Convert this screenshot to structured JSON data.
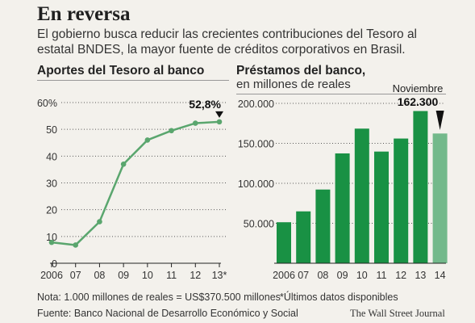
{
  "header": {
    "title": "En reversa",
    "subtitle": "El gobierno busca reducir las crecientes contribuciones del Tesoro al estatal BNDES, la mayor fuente de créditos corporativos en Brasil."
  },
  "colors": {
    "line_green": "#5aa66e",
    "bar_green": "#199144",
    "bar_last": "#73b98b",
    "grid": "#555555"
  },
  "chart_data": [
    {
      "type": "line",
      "title": "Aportes del Tesoro al banco",
      "x": [
        "2006",
        "07",
        "08",
        "09",
        "10",
        "11",
        "12",
        "13*"
      ],
      "y": [
        7.8,
        6.8,
        15.5,
        37,
        46,
        49.5,
        52.3,
        52.8
      ],
      "yticks": [
        "60%",
        "50",
        "40",
        "30",
        "20",
        "10",
        "0"
      ],
      "ylim": [
        0,
        60
      ],
      "annotation": "52,8%",
      "grid": "dotted"
    },
    {
      "type": "bar",
      "title": "Préstamos del banco,",
      "subtitle": "en millones de reales",
      "categories": [
        "2006",
        "07",
        "08",
        "09",
        "10",
        "11",
        "12",
        "13",
        "14"
      ],
      "values": [
        51300,
        64900,
        92200,
        137400,
        168400,
        139700,
        156000,
        190400,
        162300
      ],
      "yticks": [
        "200.000",
        "150.000",
        "100.000",
        "50.000"
      ],
      "ylim": [
        0,
        200000
      ],
      "annotation_label": "Noviembre",
      "annotation_value": "162.300",
      "grid": "dotted"
    }
  ],
  "footer": {
    "note": "Nota: 1.000 millones de reales = US$370.500 millones",
    "asterisk_note": "*Últimos datos disponibles",
    "source": "Fuente: Banco Nacional de Desarrollo Económico y Social",
    "credit": "The Wall Street Journal"
  }
}
